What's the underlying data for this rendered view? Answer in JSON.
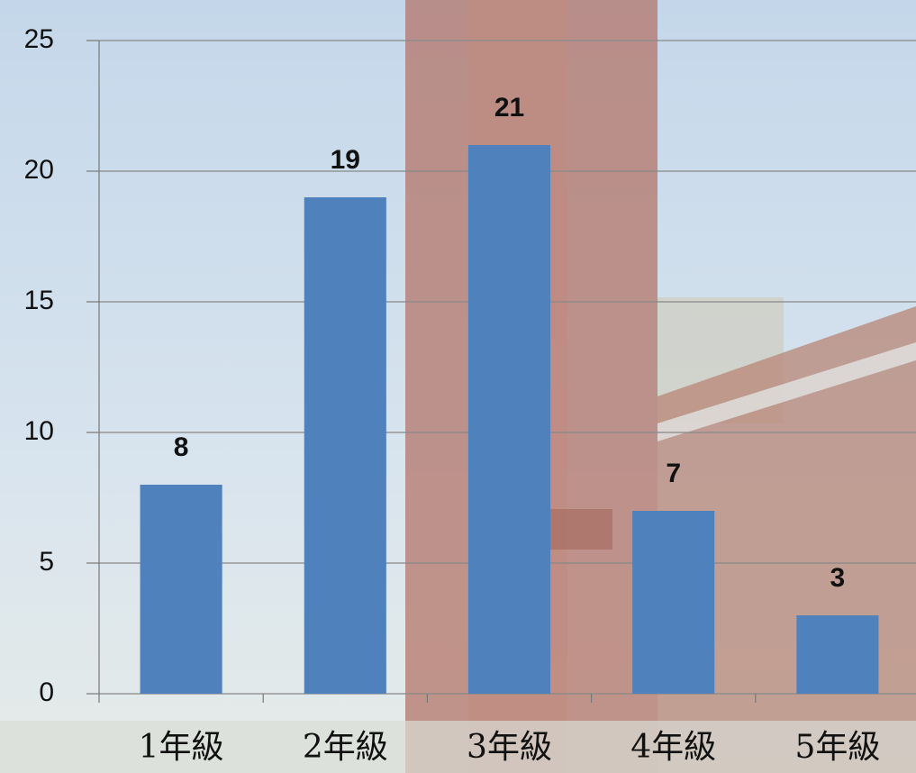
{
  "chart_data": {
    "type": "bar",
    "categories": [
      "1年級",
      "2年級",
      "3年級",
      "4年級",
      "5年級"
    ],
    "values": [
      8,
      19,
      21,
      7,
      3
    ],
    "color": "#4f81bd",
    "ylim": [
      0,
      25
    ],
    "yticks": [
      0,
      5,
      10,
      15,
      20,
      25
    ],
    "grid": true
  }
}
